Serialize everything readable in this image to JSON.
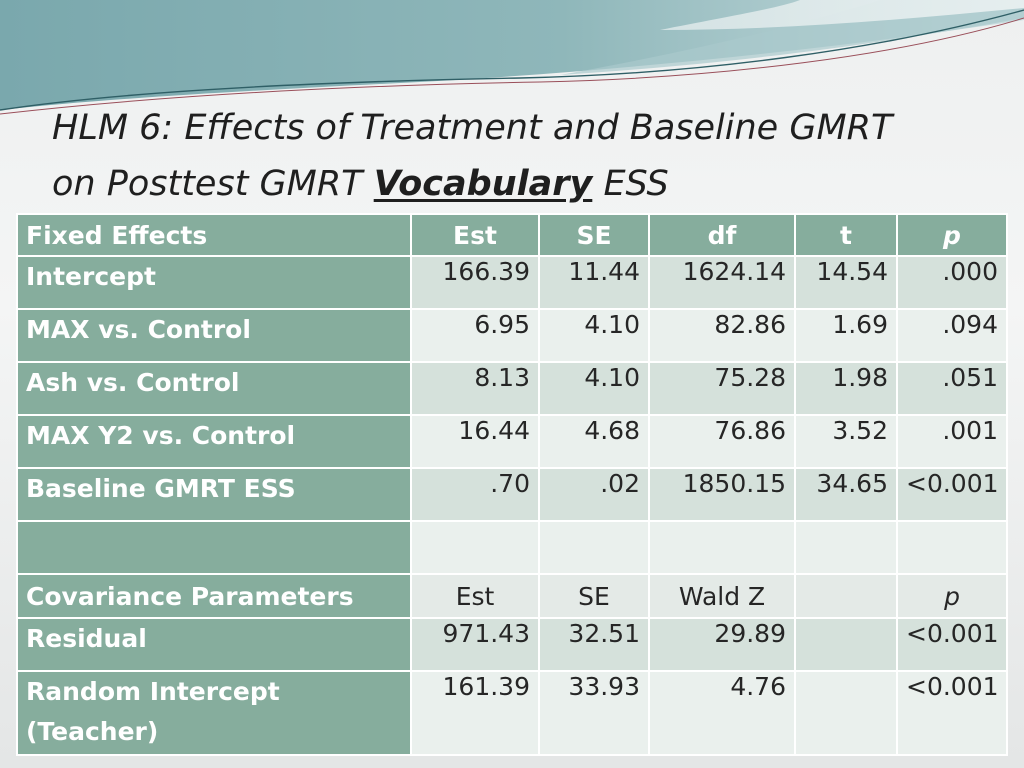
{
  "slide": {
    "title_line1": "HLM 6: Effects of Treatment and Baseline GMRT",
    "title_line2_prefix": "on Posttest GMRT ",
    "title_emphasis": "Vocabulary",
    "title_line2_suffix": " ESS"
  },
  "table": {
    "fixed_header": [
      "Fixed Effects",
      "Est",
      "SE",
      "df",
      "t",
      "p"
    ],
    "fixed_rows": [
      {
        "label": "Intercept",
        "est": "166.39",
        "se": "11.44",
        "df": "1624.14",
        "t": "14.54",
        "p": ".000"
      },
      {
        "label": "MAX vs. Control",
        "est": "6.95",
        "se": "4.10",
        "df": "82.86",
        "t": "1.69",
        "p": ".094"
      },
      {
        "label": "Ash vs. Control",
        "est": "8.13",
        "se": "4.10",
        "df": "75.28",
        "t": "1.98",
        "p": ".051"
      },
      {
        "label": "MAX Y2 vs. Control",
        "est": "16.44",
        "se": "4.68",
        "df": "76.86",
        "t": "3.52",
        "p": ".001"
      },
      {
        "label": "Baseline GMRT ESS",
        "est": ".70",
        "se": ".02",
        "df": "1850.15",
        "t": "34.65",
        "p": "<0.001"
      }
    ],
    "cov_header": [
      "Covariance Parameters",
      "Est",
      "SE",
      "Wald Z",
      "",
      "p"
    ],
    "cov_rows": [
      {
        "label": "Residual",
        "est": "971.43",
        "se": "32.51",
        "wald": "29.89",
        "t": "",
        "p": "<0.001"
      },
      {
        "label_line1": "Random Intercept",
        "label_line2": "(Teacher)",
        "est": "161.39",
        "se": "33.93",
        "wald": "4.76",
        "t": "",
        "p": "<0.001"
      }
    ]
  },
  "colors": {
    "header_green": "#86ad9d",
    "row_dark": "#d5e1db",
    "row_light": "#eaf0ed",
    "banner_teal": "#6f9fa6"
  }
}
